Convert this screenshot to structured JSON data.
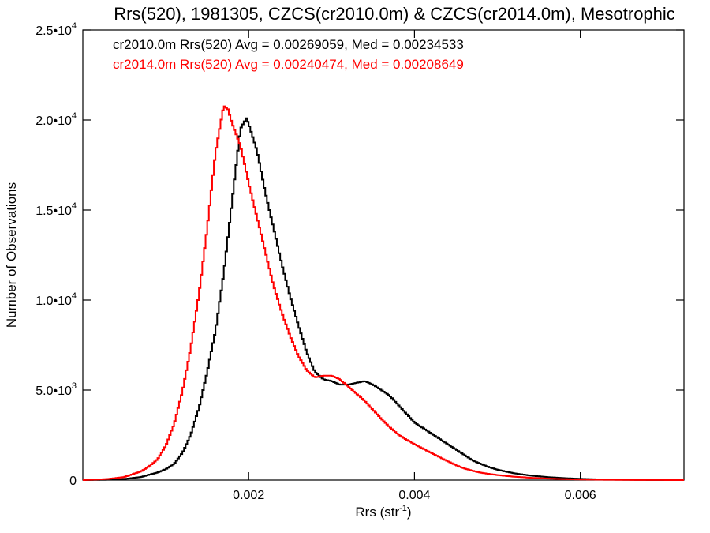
{
  "chart_data": {
    "type": "line",
    "title": "Rrs(520), 1981305, CZCS(cr2010.0m) & CZCS(cr2014.0m), Mesotrophic",
    "xlabel": "Rrs (str",
    "xlabel_sup": "-1",
    "xlabel_close": ")",
    "ylabel": "Number of Observations",
    "xlim": [
      0.0,
      0.00725
    ],
    "ylim": [
      0,
      25000
    ],
    "xticks": [
      {
        "value": 0.002,
        "label": "0.002"
      },
      {
        "value": 0.004,
        "label": "0.004"
      },
      {
        "value": 0.006,
        "label": "0.006"
      }
    ],
    "yticks": [
      {
        "value": 0,
        "mant": "0",
        "exp": ""
      },
      {
        "value": 5000,
        "mant": "5.0•10",
        "exp": "3"
      },
      {
        "value": 10000,
        "mant": "1.0•10",
        "exp": "4"
      },
      {
        "value": 15000,
        "mant": "1.5•10",
        "exp": "4"
      },
      {
        "value": 20000,
        "mant": "2.0•10",
        "exp": "4"
      },
      {
        "value": 25000,
        "mant": "2.5•10",
        "exp": "4"
      }
    ],
    "grid": false,
    "series": [
      {
        "name": "cr2010.0m",
        "color": "#000000",
        "annotation": "cr2010.0m Rrs(520) Avg = 0.00269059, Med = 0.00234533",
        "points": [
          [
            0.0,
            0
          ],
          [
            0.0003,
            20
          ],
          [
            0.0005,
            60
          ],
          [
            0.0007,
            170
          ],
          [
            0.0009,
            420
          ],
          [
            0.001,
            600
          ],
          [
            0.0011,
            900
          ],
          [
            0.0012,
            1500
          ],
          [
            0.0013,
            2500
          ],
          [
            0.0014,
            4000
          ],
          [
            0.0015,
            6000
          ],
          [
            0.0016,
            8300
          ],
          [
            0.0017,
            11500
          ],
          [
            0.0018,
            15500
          ],
          [
            0.0019,
            19500
          ],
          [
            0.00197,
            20100
          ],
          [
            0.002,
            19800
          ],
          [
            0.0021,
            18300
          ],
          [
            0.0022,
            16000
          ],
          [
            0.0023,
            14000
          ],
          [
            0.0024,
            12000
          ],
          [
            0.0025,
            10200
          ],
          [
            0.0026,
            8600
          ],
          [
            0.0027,
            7100
          ],
          [
            0.0028,
            6000
          ],
          [
            0.0029,
            5600
          ],
          [
            0.003,
            5500
          ],
          [
            0.0031,
            5300
          ],
          [
            0.0032,
            5300
          ],
          [
            0.0033,
            5400
          ],
          [
            0.0034,
            5500
          ],
          [
            0.0035,
            5300
          ],
          [
            0.0036,
            5000
          ],
          [
            0.0037,
            4700
          ],
          [
            0.0038,
            4200
          ],
          [
            0.0039,
            3700
          ],
          [
            0.004,
            3200
          ],
          [
            0.0041,
            2900
          ],
          [
            0.0042,
            2600
          ],
          [
            0.0043,
            2300
          ],
          [
            0.0044,
            2000
          ],
          [
            0.0045,
            1700
          ],
          [
            0.0046,
            1400
          ],
          [
            0.0047,
            1100
          ],
          [
            0.0048,
            900
          ],
          [
            0.0049,
            720
          ],
          [
            0.005,
            580
          ],
          [
            0.0052,
            380
          ],
          [
            0.0054,
            250
          ],
          [
            0.0056,
            170
          ],
          [
            0.0058,
            110
          ],
          [
            0.006,
            70
          ],
          [
            0.0062,
            45
          ],
          [
            0.0065,
            20
          ],
          [
            0.0068,
            8
          ],
          [
            0.00725,
            0
          ]
        ]
      },
      {
        "name": "cr2014.0m",
        "color": "#ff0000",
        "annotation": "cr2014.0m Rrs(520) Avg = 0.00240474, Med = 0.00208649",
        "points": [
          [
            0.0,
            0
          ],
          [
            0.0003,
            60
          ],
          [
            0.0005,
            170
          ],
          [
            0.0007,
            480
          ],
          [
            0.0008,
            760
          ],
          [
            0.0009,
            1150
          ],
          [
            0.001,
            1900
          ],
          [
            0.0011,
            3100
          ],
          [
            0.0012,
            4900
          ],
          [
            0.0013,
            7300
          ],
          [
            0.0014,
            10300
          ],
          [
            0.0015,
            14000
          ],
          [
            0.0016,
            18200
          ],
          [
            0.0017,
            20800
          ],
          [
            0.00175,
            20600
          ],
          [
            0.0018,
            19800
          ],
          [
            0.0019,
            18600
          ],
          [
            0.002,
            16500
          ],
          [
            0.0021,
            14600
          ],
          [
            0.0022,
            12700
          ],
          [
            0.0023,
            10800
          ],
          [
            0.0024,
            9300
          ],
          [
            0.0025,
            8000
          ],
          [
            0.0026,
            6900
          ],
          [
            0.0027,
            6100
          ],
          [
            0.0028,
            5700
          ],
          [
            0.0029,
            5800
          ],
          [
            0.003,
            5800
          ],
          [
            0.0031,
            5600
          ],
          [
            0.0032,
            5200
          ],
          [
            0.0033,
            4800
          ],
          [
            0.0034,
            4400
          ],
          [
            0.0035,
            3900
          ],
          [
            0.0036,
            3400
          ],
          [
            0.0037,
            2950
          ],
          [
            0.0038,
            2550
          ],
          [
            0.0039,
            2250
          ],
          [
            0.004,
            2000
          ],
          [
            0.0041,
            1750
          ],
          [
            0.0042,
            1520
          ],
          [
            0.0043,
            1280
          ],
          [
            0.0044,
            1050
          ],
          [
            0.0045,
            830
          ],
          [
            0.0046,
            650
          ],
          [
            0.0047,
            520
          ],
          [
            0.0048,
            410
          ],
          [
            0.005,
            280
          ],
          [
            0.0052,
            190
          ],
          [
            0.0054,
            130
          ],
          [
            0.0056,
            85
          ],
          [
            0.0058,
            55
          ],
          [
            0.006,
            35
          ],
          [
            0.0063,
            18
          ],
          [
            0.0066,
            8
          ],
          [
            0.00725,
            0
          ]
        ]
      }
    ]
  }
}
